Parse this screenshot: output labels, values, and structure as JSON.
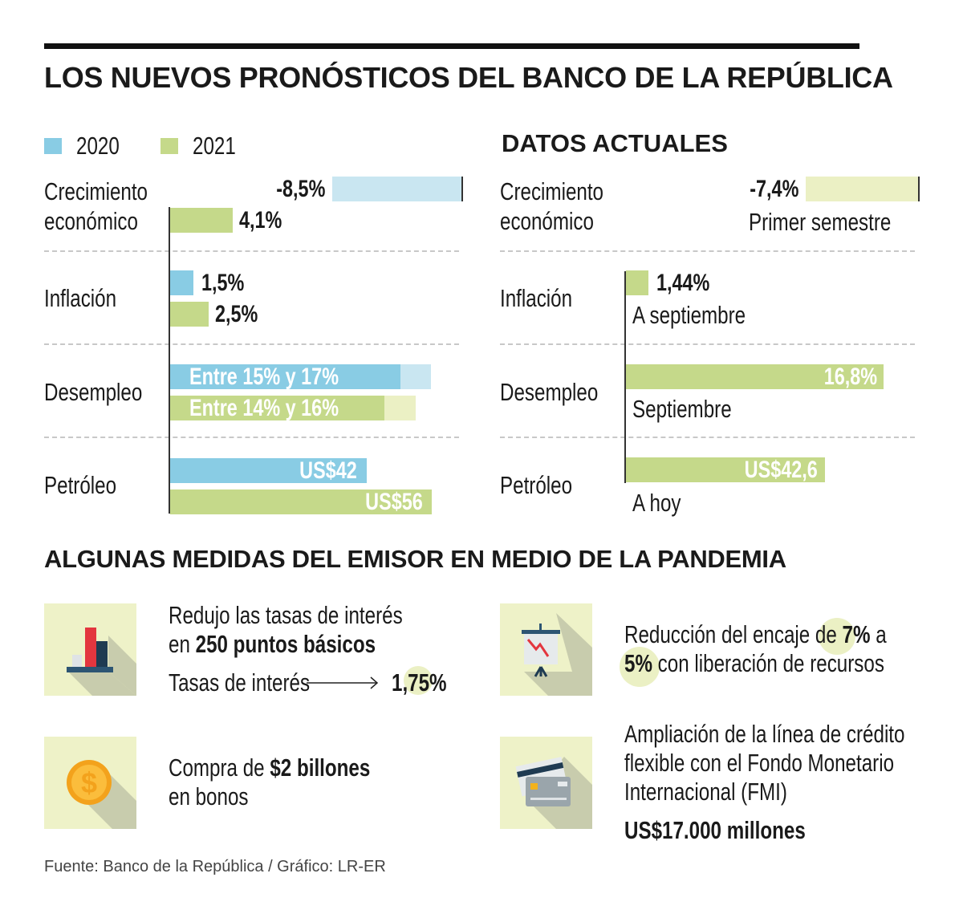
{
  "title": "LOS NUEVOS PRONÓSTICOS DEL BANCO DE LA REPÚBLICA",
  "legend": [
    {
      "label": "2020",
      "color": "#89cce4"
    },
    {
      "label": "2021",
      "color": "#c5d98a"
    }
  ],
  "actual_title": "DATOS ACTUALES",
  "colors": {
    "blue": "#89cce4",
    "light_blue": "#c9e6f1",
    "green": "#c5d98a",
    "light_green": "#ebf0c4",
    "icon_bg": "#eef2c8"
  },
  "chart_data": [
    {
      "type": "bar",
      "title": "",
      "orientation": "horizontal",
      "categories": [
        "Crecimiento económico",
        "Inflación",
        "Desempleo",
        "Petróleo"
      ],
      "series": [
        {
          "name": "2020",
          "values": [
            -8.5,
            1.5,
            [
              15,
              17
            ],
            42
          ],
          "labels": [
            "-8,5%",
            "1,5%",
            "Entre 15% y 17%",
            "US$42"
          ]
        },
        {
          "name": "2021",
          "values": [
            4.1,
            2.5,
            [
              14,
              16
            ],
            56
          ],
          "labels": [
            "4,1%",
            "2,5%",
            "Entre 14% y 16%",
            "US$56"
          ]
        }
      ]
    },
    {
      "type": "bar",
      "title": "DATOS ACTUALES",
      "orientation": "horizontal",
      "categories": [
        "Crecimiento económico",
        "Inflación",
        "Desempleo",
        "Petróleo"
      ],
      "values": [
        -7.4,
        1.44,
        16.8,
        42.6
      ],
      "labels": [
        "-7,4%",
        "1,44%",
        "16,8%",
        "US$42,6"
      ],
      "notes": [
        "Primer semestre",
        "A septiembre",
        "Septiembre",
        "A hoy"
      ]
    }
  ],
  "rows": {
    "growth_1": "Crecimiento",
    "growth_2": "económico",
    "inflation": "Inflación",
    "unemployment": "Desempleo",
    "oil": "Petróleo"
  },
  "measures_title": "ALGUNAS MEDIDAS DEL EMISOR EN MEDIO DE LA PANDEMIA",
  "measures": {
    "rates": {
      "line1": "Redujo las tasas de interés",
      "pre": "en",
      "bold": "250 puntos básicos",
      "label": "Tasas de interés",
      "value": "1,75%",
      "icon": "bar-chart-icon"
    },
    "reserve": {
      "pre": "Reducción del encaje de",
      "from": "7%",
      "mid": "a",
      "to": "5%",
      "post": "con liberación de recursos",
      "icon": "presentation-chart-icon"
    },
    "bonds": {
      "pre": "Compra de",
      "bold": "$2 billones",
      "line2": "en bonos",
      "icon": "dollar-coin-icon"
    },
    "credit": {
      "line1": "Ampliación de la línea de crédito",
      "line2": "flexible con el Fondo Monetario",
      "line3": "Internacional (FMI)",
      "amount": "US$17.000 millones",
      "icon": "credit-card-icon"
    }
  },
  "source": "Fuente: Banco de la República / Gráfico: LR-ER"
}
